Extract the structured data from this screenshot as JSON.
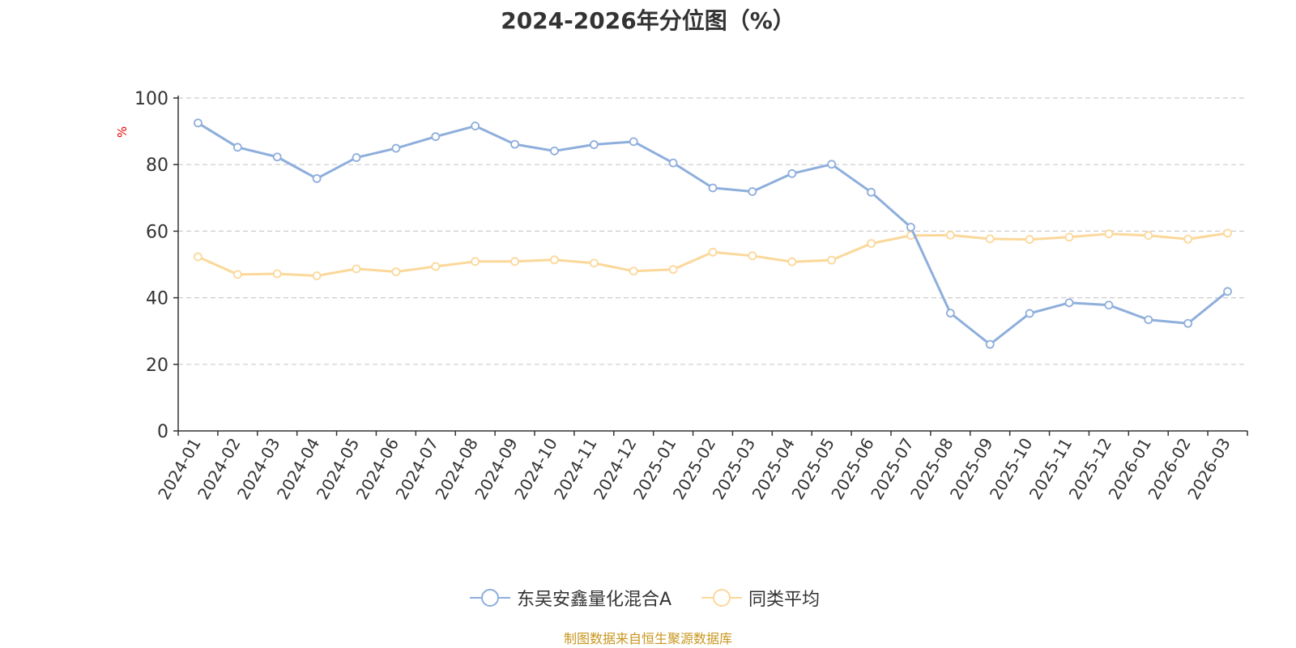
{
  "title": "2024-2026年分位图（%）",
  "unit": "%",
  "source": "制图数据来自恒生聚源数据库",
  "colors": {
    "series1": "#8eaedc",
    "series2": "#fbd89a",
    "grid": "#cccccc",
    "axis": "#333333"
  },
  "chart_data": {
    "type": "line",
    "ylim": [
      0,
      100
    ],
    "yticks": [
      0,
      20,
      40,
      60,
      80,
      100
    ],
    "grid": "horizontal-dashed",
    "legend_position": "bottom-center",
    "categories": [
      "2024-01",
      "2024-02",
      "2024-03",
      "2024-04",
      "2024-05",
      "2024-06",
      "2024-07",
      "2024-08",
      "2024-09",
      "2024-10",
      "2024-11",
      "2024-12",
      "2025-01",
      "2025-02",
      "2025-03",
      "2025-04",
      "2025-05",
      "2025-06",
      "2025-07",
      "2025-08",
      "2025-09",
      "2025-10",
      "2025-11",
      "2025-12",
      "2026-01",
      "2026-02",
      "2026-03"
    ],
    "series": [
      {
        "name": "东吴安鑫量化混合A",
        "values": [
          92.5,
          85.2,
          82.3,
          75.8,
          82.1,
          84.9,
          88.4,
          91.6,
          86.1,
          84.1,
          86.0,
          86.9,
          80.5,
          73.0,
          71.9,
          77.3,
          80.1,
          71.7,
          61.2,
          35.4,
          26.0,
          35.3,
          38.5,
          37.8,
          33.4,
          32.3,
          41.9
        ]
      },
      {
        "name": "同类平均",
        "values": [
          52.3,
          47.0,
          47.2,
          46.6,
          48.7,
          47.8,
          49.4,
          50.9,
          50.9,
          51.4,
          50.4,
          48.0,
          48.5,
          53.7,
          52.6,
          50.8,
          51.3,
          56.3,
          58.7,
          58.8,
          57.7,
          57.5,
          58.2,
          59.2,
          58.7,
          57.6,
          59.4
        ]
      }
    ]
  }
}
